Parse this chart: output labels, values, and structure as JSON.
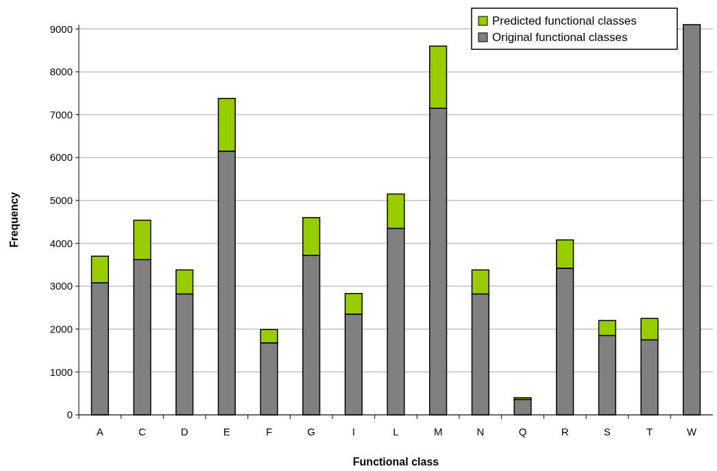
{
  "chart_data": {
    "type": "bar",
    "stacked": true,
    "xlabel": "Functional class",
    "ylabel": "Frequency",
    "categories": [
      "A",
      "C",
      "D",
      "E",
      "F",
      "G",
      "I",
      "L",
      "M",
      "N",
      "Q",
      "R",
      "S",
      "T",
      "W"
    ],
    "series": [
      {
        "name": "Original functional classes",
        "color": "#808080",
        "values": [
          3080,
          3620,
          2820,
          6150,
          1680,
          3720,
          2350,
          4350,
          7150,
          2820,
          360,
          3420,
          1850,
          1750,
          9100
        ]
      },
      {
        "name": "Predicted functional classes",
        "color": "#99cc00",
        "values": [
          620,
          920,
          560,
          1230,
          310,
          880,
          480,
          800,
          1450,
          560,
          40,
          660,
          350,
          500,
          null
        ]
      }
    ],
    "ylim": [
      0,
      9100
    ],
    "yticks": [
      0,
      1000,
      2000,
      3000,
      4000,
      5000,
      6000,
      7000,
      8000,
      9000
    ],
    "grid": "y",
    "legend": "top right"
  }
}
